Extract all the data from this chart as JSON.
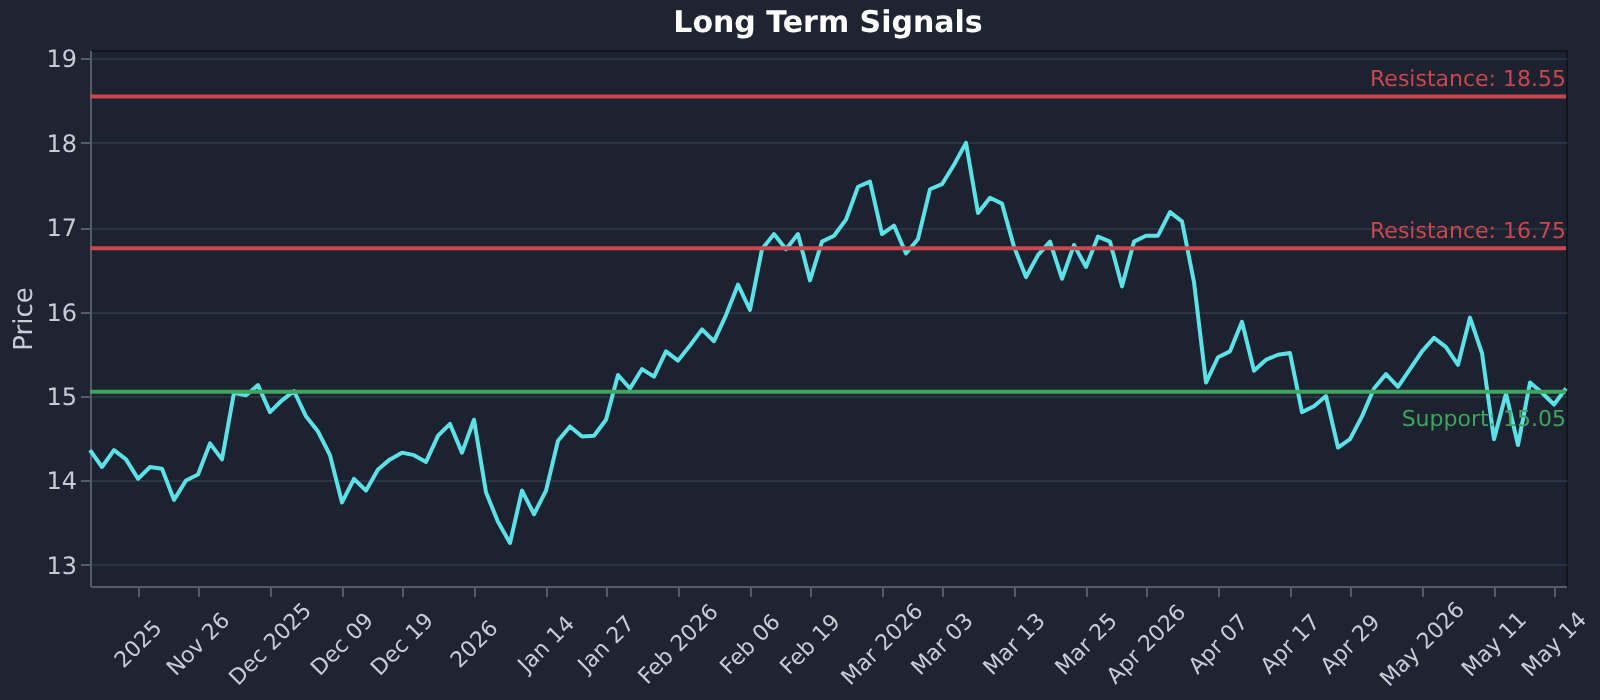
{
  "chart_data": {
    "type": "line",
    "title": "Long Term Signals",
    "ylabel": "Price",
    "categories": [
      null,
      null,
      null,
      null,
      "2025",
      null,
      null,
      null,
      null,
      "Nov 26",
      null,
      null,
      null,
      null,
      null,
      "Dec 2025",
      null,
      null,
      null,
      null,
      null,
      "Dec 09",
      null,
      null,
      null,
      null,
      "Dec 19",
      null,
      null,
      null,
      null,
      null,
      "2026",
      null,
      null,
      null,
      null,
      null,
      "Jan 14",
      null,
      null,
      null,
      null,
      "Jan 27",
      null,
      null,
      null,
      null,
      null,
      "Feb 2026",
      null,
      null,
      null,
      null,
      null,
      "Feb 06",
      null,
      null,
      null,
      null,
      "Feb 19",
      null,
      null,
      null,
      null,
      null,
      "Mar 2026",
      null,
      null,
      null,
      null,
      "Mar 03",
      null,
      null,
      null,
      null,
      null,
      "Mar 13",
      null,
      null,
      null,
      null,
      null,
      "Mar 25",
      null,
      null,
      null,
      null,
      "Apr 2026",
      null,
      null,
      null,
      null,
      null,
      "Apr 07",
      null,
      null,
      null,
      null,
      null,
      "Apr 17",
      null,
      null,
      null,
      null,
      "Apr 29",
      null,
      null,
      null,
      null,
      null,
      "May 2026",
      null,
      null,
      null,
      null,
      null,
      "May 11",
      null,
      null,
      null,
      null,
      "May 14",
      null
    ],
    "series": [
      {
        "color": "#5ce1e6",
        "values": [
          14.36,
          14.16,
          14.36,
          14.25,
          14.02,
          14.16,
          14.14,
          13.77,
          14.0,
          14.07,
          14.44,
          14.25,
          15.04,
          15.01,
          15.13,
          14.81,
          14.95,
          15.06,
          14.76,
          14.58,
          14.3,
          13.74,
          14.02,
          13.88,
          14.13,
          14.25,
          14.33,
          14.3,
          14.22,
          14.53,
          14.67,
          14.33,
          14.72,
          13.86,
          13.51,
          13.26,
          13.88,
          13.6,
          13.88,
          14.47,
          14.64,
          14.52,
          14.53,
          14.72,
          15.25,
          15.09,
          15.32,
          15.23,
          15.53,
          15.42,
          15.6,
          15.79,
          15.65,
          15.96,
          16.32,
          16.02,
          16.74,
          16.92,
          16.74,
          16.92,
          16.37,
          16.83,
          16.9,
          17.09,
          17.48,
          17.54,
          16.92,
          17.02,
          16.69,
          16.86,
          17.45,
          17.51,
          17.74,
          18.0,
          17.17,
          17.35,
          17.28,
          16.77,
          16.41,
          16.67,
          16.83,
          16.39,
          16.79,
          16.53,
          16.89,
          16.83,
          16.3,
          16.83,
          16.9,
          16.9,
          17.18,
          17.07,
          16.35,
          15.16,
          15.46,
          15.53,
          15.88,
          15.3,
          15.43,
          15.49,
          15.51,
          14.81,
          14.88,
          15.0,
          14.39,
          14.49,
          14.76,
          15.09,
          15.26,
          15.11,
          15.32,
          15.53,
          15.69,
          15.58,
          15.37,
          15.93,
          15.51,
          14.49,
          15.03,
          14.42,
          15.16,
          15.04,
          14.9,
          15.09
        ]
      }
    ],
    "ylim": [
      12.75,
      19.1
    ],
    "yticks": [
      13,
      14,
      15,
      16,
      17,
      18,
      19
    ],
    "grid": "y",
    "ref_lines": [
      {
        "axis": "y",
        "value": 18.55,
        "label": "Resistance: 18.55",
        "color": "#c9474d"
      },
      {
        "axis": "y",
        "value": 16.75,
        "label": "Resistance: 16.75",
        "color": "#c9474d"
      },
      {
        "axis": "y",
        "value": 15.05,
        "label": "Support: 15.05",
        "color": "#3fa45d"
      }
    ]
  }
}
